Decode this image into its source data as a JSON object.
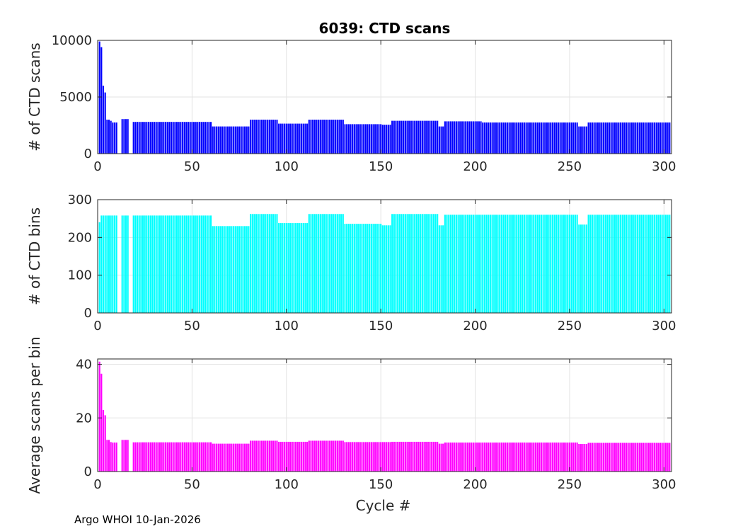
{
  "footer": "Argo WHOI 10-Jan-2026",
  "chart_data": [
    {
      "type": "bar",
      "title": "6039: CTD scans",
      "xlabel": "",
      "ylabel": "# of CTD scans",
      "xlim": [
        0,
        304
      ],
      "ylim": [
        0,
        10000
      ],
      "xticks": [
        0,
        50,
        100,
        150,
        200,
        250,
        300
      ],
      "yticks": [
        0,
        5000,
        10000
      ],
      "grid": true,
      "color": "#0000ff",
      "segments": [
        {
          "from": 1,
          "to": 1,
          "value": 9900
        },
        {
          "from": 2,
          "to": 2,
          "value": 9400
        },
        {
          "from": 3,
          "to": 3,
          "value": 6000
        },
        {
          "from": 4,
          "to": 4,
          "value": 5400
        },
        {
          "from": 5,
          "to": 6,
          "value": 3000
        },
        {
          "from": 7,
          "to": 7,
          "value": 2900
        },
        {
          "from": 8,
          "to": 10,
          "value": 2750
        },
        {
          "from": 13,
          "to": 16,
          "value": 3050
        },
        {
          "from": 19,
          "to": 60,
          "value": 2800
        },
        {
          "from": 61,
          "to": 80,
          "value": 2400
        },
        {
          "from": 81,
          "to": 95,
          "value": 3000
        },
        {
          "from": 96,
          "to": 111,
          "value": 2650
        },
        {
          "from": 112,
          "to": 130,
          "value": 3000
        },
        {
          "from": 131,
          "to": 150,
          "value": 2600
        },
        {
          "from": 151,
          "to": 155,
          "value": 2550
        },
        {
          "from": 156,
          "to": 180,
          "value": 2900
        },
        {
          "from": 181,
          "to": 183,
          "value": 2400
        },
        {
          "from": 184,
          "to": 203,
          "value": 2850
        },
        {
          "from": 204,
          "to": 254,
          "value": 2750
        },
        {
          "from": 255,
          "to": 259,
          "value": 2400
        },
        {
          "from": 260,
          "to": 303,
          "value": 2750
        }
      ]
    },
    {
      "type": "bar",
      "title": "",
      "xlabel": "",
      "ylabel": "# of CTD bins",
      "xlim": [
        0,
        304
      ],
      "ylim": [
        0,
        300
      ],
      "xticks": [
        0,
        50,
        100,
        150,
        200,
        250,
        300
      ],
      "yticks": [
        0,
        100,
        200,
        300
      ],
      "grid": true,
      "color": "#00ffff",
      "segments": [
        {
          "from": 1,
          "to": 1,
          "value": 240
        },
        {
          "from": 2,
          "to": 10,
          "value": 258
        },
        {
          "from": 13,
          "to": 16,
          "value": 258
        },
        {
          "from": 19,
          "to": 60,
          "value": 258
        },
        {
          "from": 61,
          "to": 80,
          "value": 230
        },
        {
          "from": 81,
          "to": 95,
          "value": 262
        },
        {
          "from": 96,
          "to": 111,
          "value": 238
        },
        {
          "from": 112,
          "to": 130,
          "value": 262
        },
        {
          "from": 131,
          "to": 150,
          "value": 236
        },
        {
          "from": 151,
          "to": 155,
          "value": 232
        },
        {
          "from": 156,
          "to": 180,
          "value": 262
        },
        {
          "from": 181,
          "to": 183,
          "value": 232
        },
        {
          "from": 184,
          "to": 254,
          "value": 260
        },
        {
          "from": 255,
          "to": 259,
          "value": 234
        },
        {
          "from": 260,
          "to": 303,
          "value": 260
        }
      ]
    },
    {
      "type": "bar",
      "title": "",
      "xlabel": "Cycle #",
      "ylabel": "Average scans per bin",
      "xlim": [
        0,
        304
      ],
      "ylim": [
        0,
        42
      ],
      "xticks": [
        0,
        50,
        100,
        150,
        200,
        250,
        300
      ],
      "yticks": [
        0,
        20,
        40
      ],
      "grid": true,
      "color": "#ff00ff",
      "segments": [
        {
          "from": 1,
          "to": 1,
          "value": 41
        },
        {
          "from": 2,
          "to": 2,
          "value": 36.5
        },
        {
          "from": 3,
          "to": 3,
          "value": 23
        },
        {
          "from": 4,
          "to": 4,
          "value": 21
        },
        {
          "from": 5,
          "to": 6,
          "value": 11.8
        },
        {
          "from": 7,
          "to": 7,
          "value": 11
        },
        {
          "from": 8,
          "to": 10,
          "value": 10.8
        },
        {
          "from": 13,
          "to": 16,
          "value": 11.8
        },
        {
          "from": 19,
          "to": 60,
          "value": 10.9
        },
        {
          "from": 61,
          "to": 80,
          "value": 10.4
        },
        {
          "from": 81,
          "to": 95,
          "value": 11.5
        },
        {
          "from": 96,
          "to": 111,
          "value": 11.1
        },
        {
          "from": 112,
          "to": 130,
          "value": 11.5
        },
        {
          "from": 131,
          "to": 150,
          "value": 11.0
        },
        {
          "from": 151,
          "to": 155,
          "value": 11.0
        },
        {
          "from": 156,
          "to": 180,
          "value": 11.1
        },
        {
          "from": 181,
          "to": 183,
          "value": 10.4
        },
        {
          "from": 184,
          "to": 254,
          "value": 10.8
        },
        {
          "from": 255,
          "to": 259,
          "value": 10.3
        },
        {
          "from": 260,
          "to": 303,
          "value": 10.7
        }
      ]
    }
  ]
}
